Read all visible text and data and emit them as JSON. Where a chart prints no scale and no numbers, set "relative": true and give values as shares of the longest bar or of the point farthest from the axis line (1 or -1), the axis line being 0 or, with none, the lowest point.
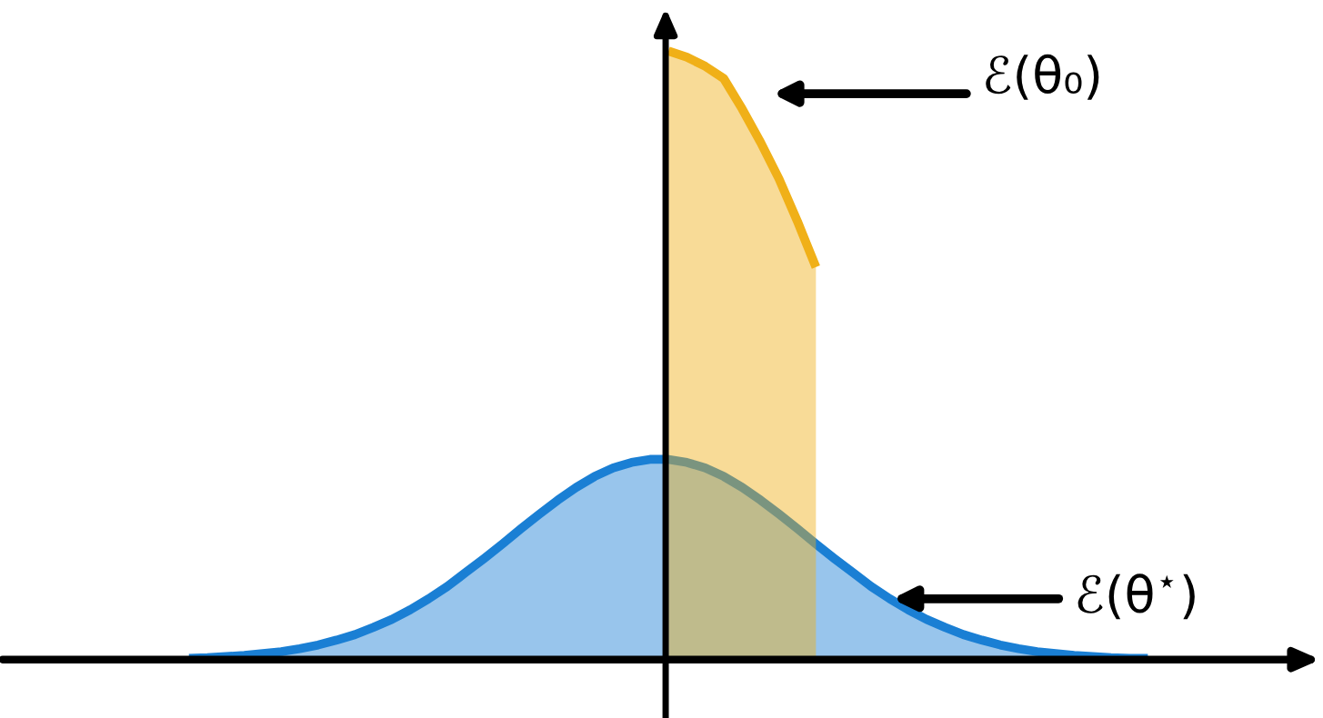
{
  "chart_data": {
    "type": "area",
    "relative": true,
    "categories": [
      null,
      null,
      null,
      null,
      null,
      null,
      null,
      null,
      null,
      null,
      null,
      null,
      null,
      null,
      null,
      null,
      null,
      null,
      null,
      null,
      null,
      null,
      null,
      null,
      null,
      null,
      null,
      null,
      null,
      null,
      null,
      null,
      null,
      null,
      null,
      null,
      null,
      null,
      null,
      null,
      null,
      null,
      null,
      null,
      null,
      null,
      null,
      null,
      null,
      null,
      null,
      null,
      null
    ],
    "series": [
      {
        "color": "#f0b018",
        "values": [
          null,
          null,
          null,
          null,
          null,
          null,
          null,
          null,
          null,
          null,
          null,
          null,
          null,
          null,
          null,
          null,
          null,
          null,
          null,
          null,
          null,
          null,
          null,
          null,
          null,
          null,
          1.0,
          0.99,
          0.975,
          0.955,
          0.905,
          0.85,
          0.79,
          0.72,
          0.645,
          null,
          null,
          null,
          null,
          null,
          null,
          null,
          null,
          null,
          null,
          null,
          null,
          null,
          null,
          null,
          null,
          null,
          null
        ]
      },
      {
        "color": "#1a7fd4",
        "values": [
          0.002,
          0.003,
          0.005,
          0.007,
          0.01,
          0.013,
          0.018,
          0.024,
          0.032,
          0.041,
          0.053,
          0.066,
          0.082,
          0.1,
          0.12,
          0.143,
          0.166,
          0.19,
          0.215,
          0.239,
          0.262,
          0.283,
          0.301,
          0.315,
          0.324,
          0.329,
          0.329,
          0.324,
          0.315,
          0.301,
          0.283,
          0.262,
          0.239,
          0.215,
          0.19,
          0.166,
          0.143,
          0.12,
          0.1,
          0.082,
          0.066,
          0.053,
          0.041,
          0.032,
          0.024,
          0.018,
          0.013,
          0.01,
          0.007,
          0.005,
          0.003,
          0.002,
          0.002
        ]
      }
    ],
    "annotations": [
      "ℰ(θ₀)",
      "ℰ(θ$^{⋆}$)"
    ]
  }
}
